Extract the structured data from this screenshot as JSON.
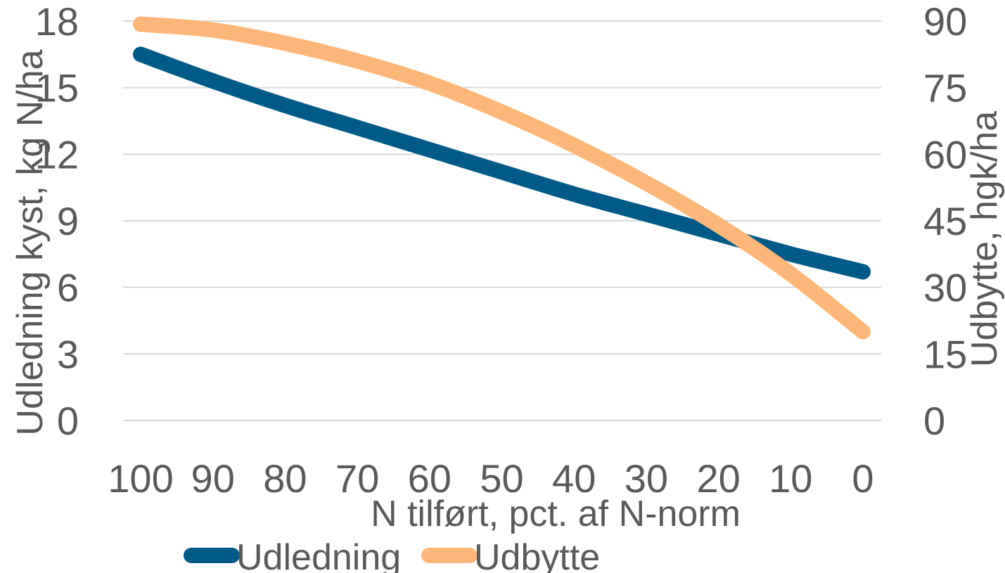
{
  "chart_data": {
    "type": "line",
    "title": "",
    "xlabel": "N tilført, pct. af N-norm",
    "ylabel_left": "Udledning kyst, kg N/ha",
    "ylabel_right": "Udbytte, hgk/ha",
    "categories": [
      "100",
      "90",
      "80",
      "70",
      "60",
      "50",
      "40",
      "30",
      "20",
      "10",
      "0"
    ],
    "y_left_ticks": [
      "0",
      "3",
      "6",
      "9",
      "12",
      "15",
      "18"
    ],
    "y_right_ticks": [
      "0",
      "15",
      "30",
      "45",
      "60",
      "75",
      "90"
    ],
    "ylim_left": [
      0,
      18
    ],
    "ylim_right": [
      0,
      90
    ],
    "grid": true,
    "legend_position": "bottom",
    "series": [
      {
        "name": "Udledning",
        "axis": "left",
        "color": "#005A87",
        "values": [
          16.5,
          15.3,
          14.2,
          13.2,
          12.2,
          11.2,
          10.2,
          9.3,
          8.4,
          7.5,
          6.7
        ]
      },
      {
        "name": "Udbytte",
        "axis": "right",
        "color": "#FFB779",
        "values": [
          89.3,
          88.0,
          85.0,
          81.0,
          76.0,
          69.5,
          62.0,
          53.5,
          44.0,
          33.0,
          20.0
        ]
      }
    ]
  }
}
